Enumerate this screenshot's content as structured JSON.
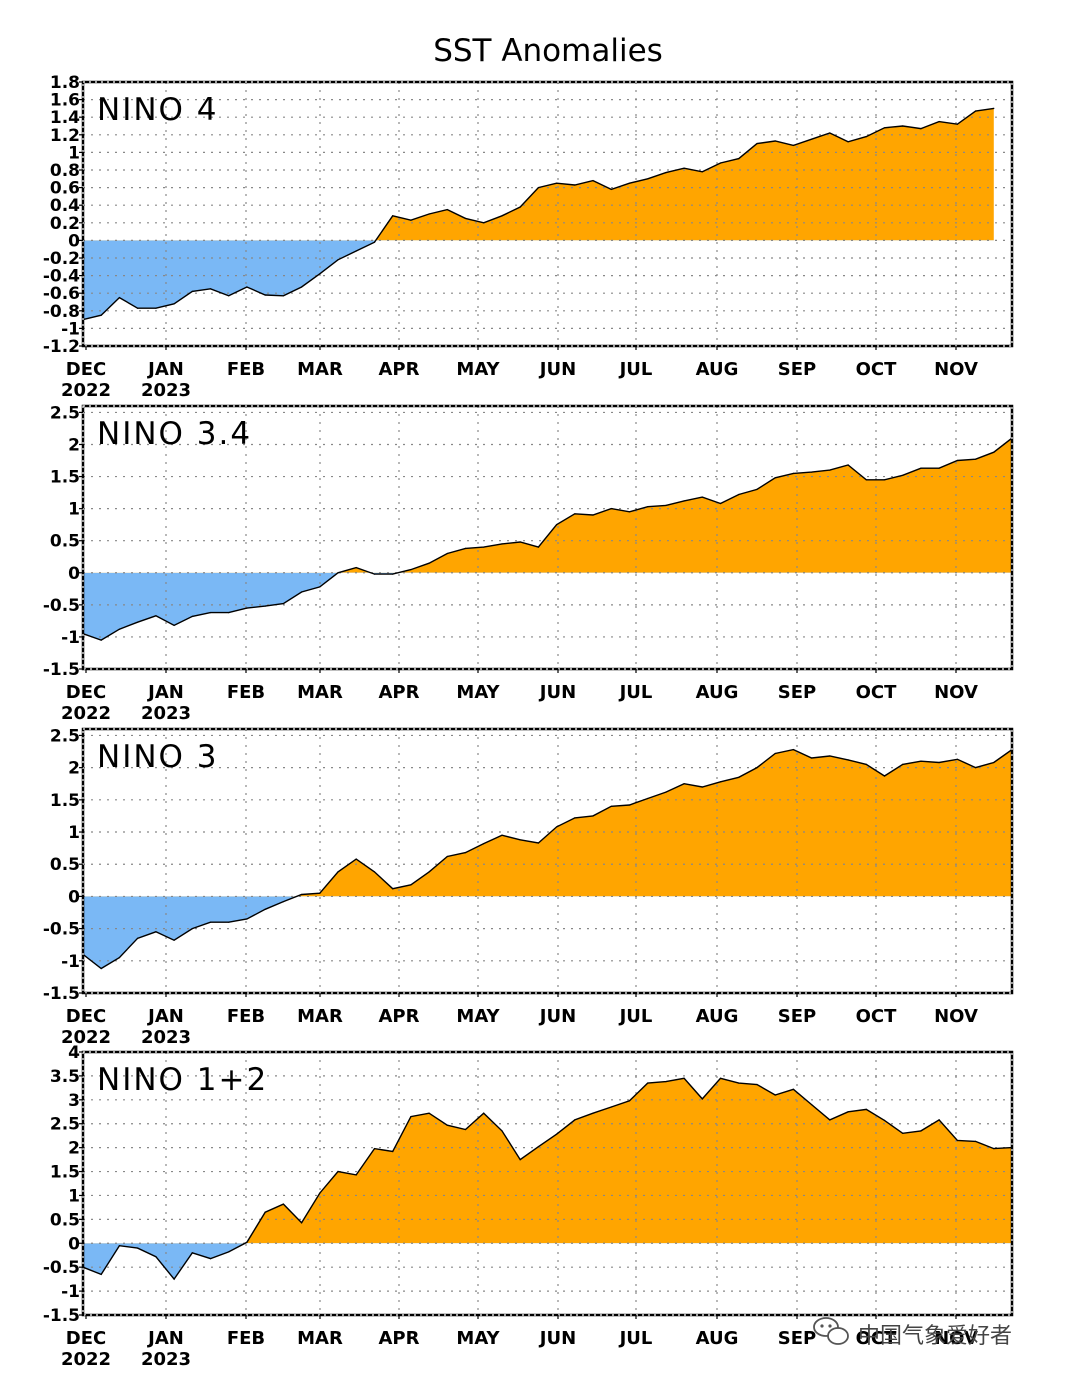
{
  "title": "SST Anomalies",
  "colors": {
    "positive": "#ffa500",
    "negative": "#7ab8f5",
    "line": "#000000"
  },
  "watermark": {
    "text": "中国气象爱好者",
    "icon": "wechat-icon"
  },
  "chart_data": [
    {
      "type": "area",
      "label": "NINO 4",
      "x_tick_labels": [
        "DEC",
        "JAN",
        "FEB",
        "MAR",
        "APR",
        "MAY",
        "JUN",
        "JUL",
        "AUG",
        "SEP",
        "OCT",
        "NOV"
      ],
      "x_year_labels": [
        "2022",
        "2023"
      ],
      "y_ticks": [
        "1.8",
        "1.6",
        "1.4",
        "1.2",
        "1",
        "0.8",
        "0.6",
        "0.4",
        "0.2",
        "0",
        "-0.2",
        "-0.4",
        "-0.6",
        "-0.8",
        "-1",
        "-1.2"
      ],
      "ylim": [
        -1.2,
        1.8
      ],
      "grid": true,
      "values": [
        -0.9,
        -0.85,
        -0.65,
        -0.77,
        -0.77,
        -0.72,
        -0.58,
        -0.55,
        -0.63,
        -0.53,
        -0.62,
        -0.63,
        -0.53,
        -0.38,
        -0.22,
        -0.12,
        -0.02,
        0.28,
        0.23,
        0.3,
        0.35,
        0.25,
        0.2,
        0.28,
        0.38,
        0.6,
        0.65,
        0.63,
        0.68,
        0.58,
        0.65,
        0.7,
        0.77,
        0.82,
        0.78,
        0.88,
        0.93,
        1.1,
        1.13,
        1.08,
        1.15,
        1.22,
        1.12,
        1.18,
        1.28,
        1.3,
        1.27,
        1.35,
        1.32,
        1.47,
        1.5
      ]
    },
    {
      "type": "area",
      "label": "NINO 3.4",
      "x_tick_labels": [
        "DEC",
        "JAN",
        "FEB",
        "MAR",
        "APR",
        "MAY",
        "JUN",
        "JUL",
        "AUG",
        "SEP",
        "OCT",
        "NOV"
      ],
      "x_year_labels": [
        "2022",
        "2023"
      ],
      "y_ticks": [
        "2.5",
        "2",
        "1.5",
        "1",
        "0.5",
        "0",
        "-0.5",
        "-1",
        "-1.5"
      ],
      "ylim": [
        -1.5,
        2.6
      ],
      "grid": true,
      "values": [
        -0.95,
        -1.05,
        -0.88,
        -0.77,
        -0.67,
        -0.82,
        -0.68,
        -0.62,
        -0.62,
        -0.55,
        -0.52,
        -0.48,
        -0.3,
        -0.22,
        0.0,
        0.08,
        -0.02,
        -0.02,
        0.05,
        0.15,
        0.3,
        0.38,
        0.4,
        0.45,
        0.48,
        0.4,
        0.75,
        0.92,
        0.9,
        1.0,
        0.95,
        1.03,
        1.05,
        1.12,
        1.18,
        1.08,
        1.22,
        1.3,
        1.48,
        1.55,
        1.57,
        1.6,
        1.68,
        1.45,
        1.45,
        1.52,
        1.63,
        1.63,
        1.75,
        1.77,
        1.88,
        2.1
      ]
    },
    {
      "type": "area",
      "label": "NINO 3",
      "x_tick_labels": [
        "DEC",
        "JAN",
        "FEB",
        "MAR",
        "APR",
        "MAY",
        "JUN",
        "JUL",
        "AUG",
        "SEP",
        "OCT",
        "NOV"
      ],
      "x_year_labels": [
        "2022",
        "2023"
      ],
      "y_ticks": [
        "2.5",
        "2",
        "1.5",
        "1",
        "0.5",
        "0",
        "-0.5",
        "-1",
        "-1.5"
      ],
      "ylim": [
        -1.5,
        2.6
      ],
      "grid": true,
      "values": [
        -0.9,
        -1.12,
        -0.95,
        -0.65,
        -0.55,
        -0.68,
        -0.5,
        -0.4,
        -0.4,
        -0.35,
        -0.2,
        -0.08,
        0.03,
        0.05,
        0.38,
        0.58,
        0.38,
        0.12,
        0.18,
        0.38,
        0.62,
        0.68,
        0.82,
        0.95,
        0.88,
        0.83,
        1.08,
        1.22,
        1.25,
        1.4,
        1.42,
        1.52,
        1.62,
        1.75,
        1.7,
        1.78,
        1.85,
        2.0,
        2.22,
        2.28,
        2.15,
        2.18,
        2.12,
        2.05,
        1.87,
        2.05,
        2.1,
        2.08,
        2.13,
        2.0,
        2.08,
        2.28
      ]
    },
    {
      "type": "area",
      "label": "NINO 1+2",
      "x_tick_labels": [
        "DEC",
        "JAN",
        "FEB",
        "MAR",
        "APR",
        "MAY",
        "JUN",
        "JUL",
        "AUG",
        "SEP",
        "OCT",
        "NOV"
      ],
      "x_year_labels": [
        "2022",
        "2023"
      ],
      "y_ticks": [
        "4",
        "3.5",
        "3",
        "2.5",
        "2",
        "1.5",
        "1",
        "0.5",
        "0",
        "-0.5",
        "-1",
        "-1.5"
      ],
      "ylim": [
        -1.5,
        4
      ],
      "grid": true,
      "values": [
        -0.5,
        -0.65,
        -0.05,
        -0.1,
        -0.28,
        -0.75,
        -0.2,
        -0.32,
        -0.18,
        0.02,
        0.65,
        0.82,
        0.43,
        1.05,
        1.5,
        1.43,
        1.98,
        1.92,
        2.65,
        2.72,
        2.47,
        2.38,
        2.72,
        2.35,
        1.75,
        2.02,
        2.28,
        2.58,
        2.72,
        2.85,
        2.98,
        3.35,
        3.38,
        3.45,
        3.02,
        3.45,
        3.35,
        3.32,
        3.1,
        3.22,
        2.9,
        2.58,
        2.75,
        2.8,
        2.57,
        2.3,
        2.35,
        2.58,
        2.15,
        2.13,
        1.98,
        2.0
      ]
    }
  ]
}
